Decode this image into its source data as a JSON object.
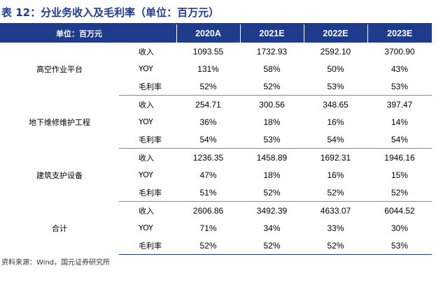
{
  "title": "表 12：分业务收入及毛利率（单位：百万元）",
  "header": {
    "unit_label": "单位：百万元",
    "years": [
      "2020A",
      "2021E",
      "2022E",
      "2023E"
    ]
  },
  "segments": [
    {
      "name": "高空作业平台",
      "rows": [
        {
          "metric": "收入",
          "values": [
            "1093.55",
            "1732.93",
            "2592.10",
            "3700.90"
          ]
        },
        {
          "metric": "YOY",
          "values": [
            "131%",
            "58%",
            "50%",
            "43%"
          ]
        },
        {
          "metric": "毛利率",
          "values": [
            "52%",
            "52%",
            "53%",
            "53%"
          ]
        }
      ]
    },
    {
      "name": "地下维修维护工程",
      "rows": [
        {
          "metric": "收入",
          "values": [
            "254.71",
            "300.56",
            "348.65",
            "397.47"
          ]
        },
        {
          "metric": "YOY",
          "values": [
            "36%",
            "18%",
            "16%",
            "14%"
          ]
        },
        {
          "metric": "毛利率",
          "values": [
            "54%",
            "53%",
            "54%",
            "54%"
          ]
        }
      ]
    },
    {
      "name": "建筑支护设备",
      "rows": [
        {
          "metric": "收入",
          "values": [
            "1236.35",
            "1458.89",
            "1692.31",
            "1946.16"
          ]
        },
        {
          "metric": "YOY",
          "values": [
            "47%",
            "18%",
            "16%",
            "15%"
          ]
        },
        {
          "metric": "毛利率",
          "values": [
            "51%",
            "52%",
            "52%",
            "52%"
          ]
        }
      ]
    },
    {
      "name": "合计",
      "rows": [
        {
          "metric": "收入",
          "values": [
            "2606.86",
            "3492.39",
            "4633.07",
            "6044.52"
          ]
        },
        {
          "metric": "YOY",
          "values": [
            "71%",
            "34%",
            "33%",
            "30%"
          ]
        },
        {
          "metric": "毛利率",
          "values": [
            "52%",
            "52%",
            "52%",
            "53%"
          ]
        }
      ]
    }
  ],
  "source": "资料来源：Wind，国元证券研究所",
  "colors": {
    "accent": "#1f3b8c",
    "header_text": "#ffffff"
  }
}
